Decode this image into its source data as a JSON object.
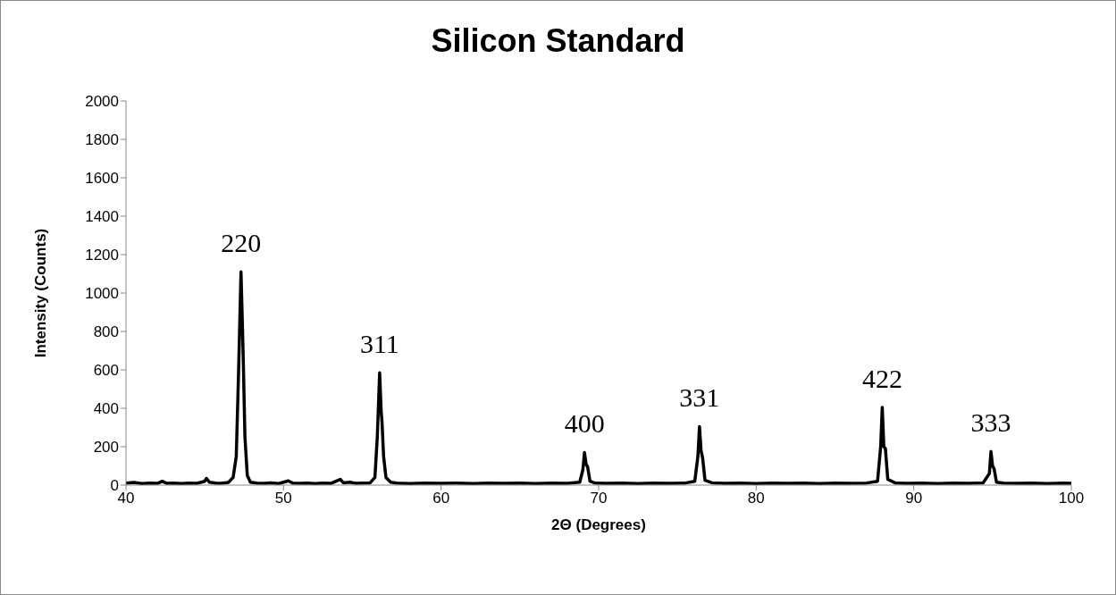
{
  "chart_data": {
    "type": "line",
    "title": "Silicon Standard",
    "xlabel": "2Θ (Degrees)",
    "ylabel": "Intensity (Counts)",
    "x": [
      40,
      40.5,
      41,
      41.5,
      42,
      42.3,
      42.6,
      43,
      43.5,
      44,
      44.5,
      45,
      45.1,
      45.3,
      45.7,
      46,
      46.5,
      46.8,
      47.0,
      47.15,
      47.3,
      47.4,
      47.45,
      47.55,
      47.7,
      47.9,
      48.3,
      48.8,
      49.2,
      49.7,
      50.3,
      50.6,
      51,
      51.5,
      52,
      52.5,
      53,
      53.6,
      53.8,
      54.2,
      54.6,
      55,
      55.5,
      55.8,
      55.95,
      56.1,
      56.2,
      56.25,
      56.35,
      56.5,
      56.8,
      57.2,
      58,
      59,
      60,
      61,
      62,
      63,
      64,
      65,
      66,
      67,
      68,
      68.8,
      69.0,
      69.1,
      69.2,
      69.3,
      69.45,
      69.8,
      70.5,
      71.5,
      72.5,
      73.5,
      74.5,
      75.5,
      76.1,
      76.3,
      76.4,
      76.5,
      76.6,
      76.75,
      77.2,
      78,
      79,
      80,
      81,
      82,
      83,
      84,
      85,
      86,
      87,
      87.7,
      87.9,
      88.0,
      88.1,
      88.2,
      88.35,
      88.8,
      89.5,
      90.5,
      91.5,
      92.5,
      93.5,
      94.4,
      94.8,
      94.9,
      95.0,
      95.1,
      95.25,
      95.7,
      96.5,
      97.5,
      98.5,
      99.5,
      100
    ],
    "series": [
      {
        "color": "#000000",
        "values": [
          10,
          14,
          8,
          11,
          9,
          20,
          9,
          10,
          8,
          11,
          9,
          20,
          35,
          15,
          10,
          9,
          14,
          40,
          150,
          600,
          1110,
          800,
          630,
          250,
          50,
          15,
          10,
          9,
          12,
          8,
          22,
          10,
          9,
          11,
          8,
          10,
          9,
          30,
          12,
          15,
          9,
          10,
          12,
          40,
          250,
          585,
          380,
          330,
          150,
          40,
          15,
          10,
          8,
          10,
          9,
          11,
          8,
          10,
          9,
          11,
          8,
          10,
          9,
          15,
          80,
          170,
          110,
          95,
          20,
          10,
          9,
          11,
          8,
          10,
          9,
          11,
          20,
          150,
          305,
          180,
          140,
          25,
          12,
          9,
          11,
          8,
          10,
          9,
          11,
          8,
          10,
          9,
          11,
          20,
          200,
          405,
          200,
          190,
          30,
          12,
          9,
          10,
          8,
          11,
          9,
          12,
          60,
          175,
          100,
          85,
          15,
          10,
          9,
          11,
          8,
          10,
          9
        ]
      }
    ],
    "xlim": [
      40,
      100
    ],
    "xticks": [
      40,
      50,
      60,
      70,
      80,
      90,
      100
    ],
    "ylim": [
      0,
      2000
    ],
    "yticks": [
      0,
      200,
      400,
      600,
      800,
      1000,
      1200,
      1400,
      1600,
      1800,
      2000
    ],
    "grid": false,
    "legend": false,
    "marker": "none",
    "line_style": "solid",
    "annotations": [
      "220",
      "311",
      "400",
      "331",
      "422",
      "333"
    ]
  }
}
